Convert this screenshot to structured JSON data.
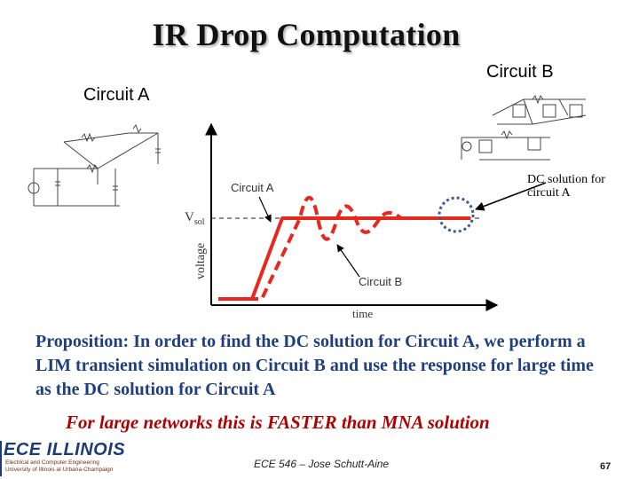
{
  "title": "IR Drop Computation",
  "labels": {
    "circuit_a": "Circuit A",
    "circuit_b": "Circuit B",
    "dc_solution": "DC solution for circuit A"
  },
  "graph": {
    "y_axis_label": "voltage",
    "x_axis_label": "time",
    "vsol_label": "V",
    "vsol_sub": "sol",
    "curve_a_label": "Circuit A",
    "curve_b_label": "Circuit B",
    "curve_color": "#e8281e"
  },
  "proposition": "Proposition: In order to find the DC solution for Circuit A, we perform a LIM transient simulation on Circuit B and use the response for large time as the DC solution for Circuit A",
  "emphasis": "For large networks this is FASTER than MNA solution",
  "footer": {
    "logo_main": "ECE ILLINOIS",
    "logo_sub": "Electrical and Computer Engineering University of Illinois at Urbana-Champaign",
    "course": "ECE 546 – Jose Schutt-Aine",
    "page": "67"
  },
  "colors": {
    "proposition": "#1f3f80",
    "emphasis": "#b00000",
    "logo": "#1d3b78"
  }
}
